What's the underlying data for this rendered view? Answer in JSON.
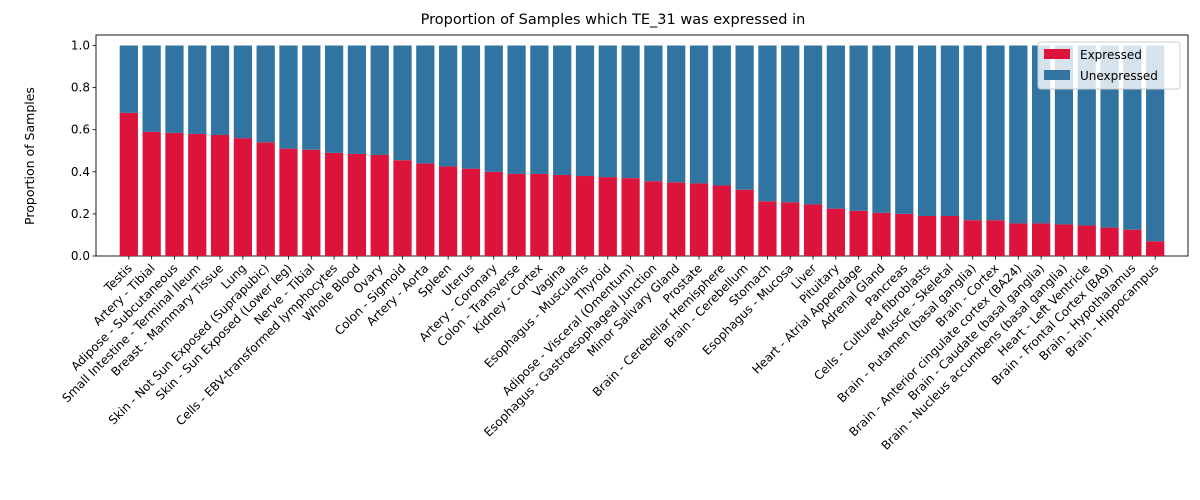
{
  "chart_data": {
    "type": "bar",
    "stacked": true,
    "title": "Proportion of Samples which TE_31 was expressed in",
    "xlabel": "",
    "ylabel": "Proportion of Samples",
    "ylim": [
      0,
      1.05
    ],
    "yticks": [
      "0.0",
      "0.2",
      "0.4",
      "0.6",
      "0.8",
      "1.0"
    ],
    "grid": false,
    "legend_position": "top-right",
    "categories": [
      "Testis",
      "Artery - Tibial",
      "Adipose - Subcutaneous",
      "Small Intestine - Terminal Ileum",
      "Breast - Mammary Tissue",
      "Lung",
      "Skin - Not Sun Exposed (Suprapubic)",
      "Skin - Sun Exposed (Lower leg)",
      "Nerve - Tibial",
      "Cells - EBV-transformed lymphocytes",
      "Whole Blood",
      "Ovary",
      "Colon - Sigmoid",
      "Artery - Aorta",
      "Spleen",
      "Uterus",
      "Artery - Coronary",
      "Colon - Transverse",
      "Kidney - Cortex",
      "Vagina",
      "Esophagus - Muscularis",
      "Thyroid",
      "Adipose - Visceral (Omentum)",
      "Esophagus - Gastroesophageal Junction",
      "Minor Salivary Gland",
      "Prostate",
      "Brain - Cerebellar Hemisphere",
      "Brain - Cerebellum",
      "Stomach",
      "Esophagus - Mucosa",
      "Liver",
      "Pituitary",
      "Heart - Atrial Appendage",
      "Adrenal Gland",
      "Pancreas",
      "Cells - Cultured fibroblasts",
      "Muscle - Skeletal",
      "Brain - Putamen (basal ganglia)",
      "Brain - Cortex",
      "Brain - Anterior cingulate cortex (BA24)",
      "Brain - Caudate (basal ganglia)",
      "Brain - Nucleus accumbens (basal ganglia)",
      "Heart - Left Ventricle",
      "Brain - Frontal Cortex (BA9)",
      "Brain - Hypothalamus",
      "Brain - Hippocampus"
    ],
    "series": [
      {
        "name": "Expressed",
        "color": "#dc143c",
        "values": [
          0.68,
          0.59,
          0.585,
          0.58,
          0.575,
          0.56,
          0.54,
          0.51,
          0.505,
          0.49,
          0.485,
          0.48,
          0.455,
          0.44,
          0.425,
          0.415,
          0.4,
          0.39,
          0.39,
          0.385,
          0.38,
          0.375,
          0.37,
          0.355,
          0.35,
          0.345,
          0.335,
          0.315,
          0.26,
          0.255,
          0.245,
          0.225,
          0.215,
          0.205,
          0.2,
          0.19,
          0.19,
          0.17,
          0.17,
          0.155,
          0.155,
          0.15,
          0.145,
          0.135,
          0.125,
          0.07
        ]
      },
      {
        "name": "Unexpressed",
        "color": "#3274a1",
        "values": [
          0.32,
          0.41,
          0.415,
          0.42,
          0.425,
          0.44,
          0.46,
          0.49,
          0.495,
          0.51,
          0.515,
          0.52,
          0.545,
          0.56,
          0.575,
          0.585,
          0.6,
          0.61,
          0.61,
          0.615,
          0.62,
          0.625,
          0.63,
          0.645,
          0.65,
          0.655,
          0.665,
          0.685,
          0.74,
          0.745,
          0.755,
          0.775,
          0.785,
          0.795,
          0.8,
          0.81,
          0.81,
          0.83,
          0.83,
          0.845,
          0.845,
          0.85,
          0.855,
          0.865,
          0.875,
          0.93
        ]
      }
    ]
  }
}
